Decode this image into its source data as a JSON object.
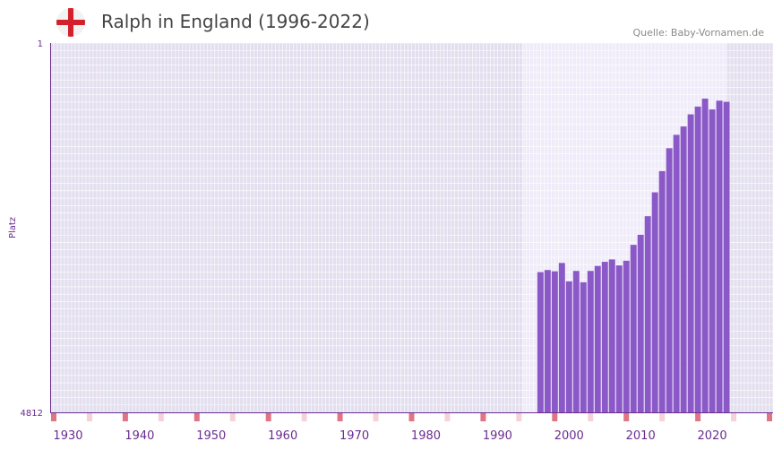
{
  "header": {
    "title": "Ralph in England (1996-2022)",
    "source": "Quelle: Baby-Vornamen.de",
    "flag_icon": "england-flag-icon"
  },
  "colors": {
    "plot_bg": "#e3dfef",
    "highlight_bg": "#efebf9",
    "grid": "#ffffff",
    "bar": "#8a58c7",
    "axis": "#6a2c91",
    "marker_decade": "#e17484",
    "marker_mid": "#f6d2d8"
  },
  "chart_data": {
    "type": "bar",
    "title": "Ralph in England (1996-2022)",
    "xlabel": "",
    "ylabel": "Platz",
    "y_axis_inverted": true,
    "ylim": [
      4812,
      1
    ],
    "y_tick_labels": [
      "1",
      "4812"
    ],
    "xlim": [
      1928,
      2029
    ],
    "x_ticks": [
      1930,
      1940,
      1950,
      1960,
      1970,
      1980,
      1990,
      2000,
      2010,
      2020
    ],
    "x_tick_labels": [
      "1930",
      "1940",
      "1950",
      "1960",
      "1970",
      "1980",
      "1990",
      "2000",
      "2010",
      "2020"
    ],
    "highlight_range": [
      1994,
      2022
    ],
    "x": [
      1996,
      1997,
      1998,
      1999,
      2000,
      2001,
      2002,
      2003,
      2004,
      2005,
      2006,
      2007,
      2008,
      2009,
      2010,
      2011,
      2012,
      2013,
      2014,
      2015,
      2016,
      2017,
      2018,
      2019,
      2020,
      2021,
      2022
    ],
    "values": [
      2985,
      2958,
      2975,
      2866,
      3106,
      2970,
      3118,
      2970,
      2905,
      2851,
      2820,
      2898,
      2837,
      2630,
      2499,
      2257,
      1946,
      1670,
      1371,
      1197,
      1088,
      930,
      829,
      725,
      866,
      752,
      767
    ]
  }
}
